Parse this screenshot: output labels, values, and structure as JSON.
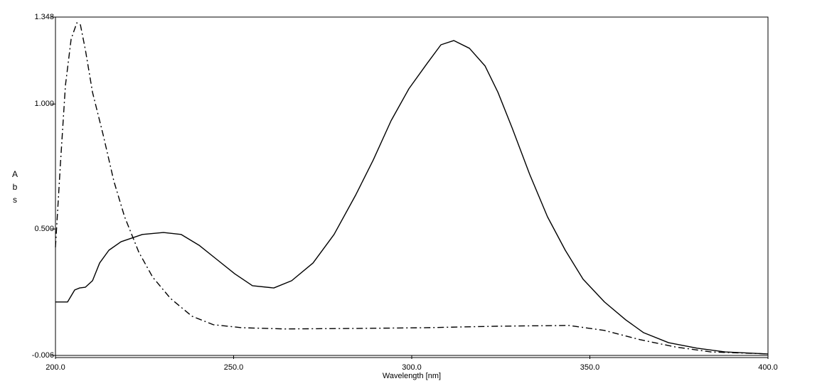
{
  "chart_data": {
    "type": "line",
    "x_label": "Wavelength [nm]",
    "y_label": "Abs",
    "xlim": [
      200,
      400
    ],
    "ylim": [
      -0.006,
      1.348
    ],
    "xticks": [
      {
        "value": 200,
        "label": "200.0"
      },
      {
        "value": 250,
        "label": "250.0"
      },
      {
        "value": 300,
        "label": "300.0"
      },
      {
        "value": 350,
        "label": "350.0"
      },
      {
        "value": 400,
        "label": "400.0"
      }
    ],
    "yticks": [
      -0.006,
      {
        "value": 0.5,
        "label": "0.500"
      },
      {
        "value": 1,
        "label": "1.000"
      },
      1.348
    ],
    "series": [
      {
        "color": "#000000",
        "dash": "solid",
        "x": [
          200,
          203.4,
          205.4,
          206.8,
          208.4,
          210.4,
          212.4,
          215,
          218.4,
          224.4,
          230.3,
          235.3,
          240.3,
          245.3,
          250.3,
          255.3,
          261.3,
          266.3,
          272.3,
          278.2,
          284.2,
          289.2,
          294.2,
          299.2,
          304.2,
          308.2,
          311.8,
          316.2,
          320.6,
          324.2,
          328.2,
          333.1,
          338.1,
          343.1,
          348.1,
          354.1,
          360.1,
          365.1,
          372.1,
          380.1,
          388,
          400
        ],
        "values": [
          0.208,
          0.208,
          0.256,
          0.264,
          0.267,
          0.293,
          0.364,
          0.415,
          0.449,
          0.478,
          0.486,
          0.478,
          0.435,
          0.378,
          0.321,
          0.273,
          0.264,
          0.293,
          0.364,
          0.478,
          0.634,
          0.776,
          0.933,
          1.061,
          1.16,
          1.237,
          1.254,
          1.223,
          1.152,
          1.047,
          0.904,
          0.719,
          0.549,
          0.415,
          0.299,
          0.208,
          0.136,
          0.085,
          0.045,
          0.023,
          0.008,
          0
        ]
      },
      {
        "color": "#000000",
        "dash": "dashdot",
        "x": [
          200,
          201.4,
          202.8,
          204.4,
          206,
          207,
          208.4,
          210.4,
          213.4,
          216.4,
          219.4,
          223.4,
          227.3,
          232.3,
          238.3,
          244.3,
          252.3,
          264.3,
          284.2,
          304.2,
          324.2,
          344.1,
          354.1,
          364.1,
          374,
          384,
          400
        ],
        "values": [
          0.427,
          0.762,
          1.075,
          1.26,
          1.325,
          1.317,
          1.217,
          1.047,
          0.876,
          0.691,
          0.549,
          0.407,
          0.307,
          0.222,
          0.151,
          0.117,
          0.105,
          0.1,
          0.102,
          0.105,
          0.111,
          0.114,
          0.094,
          0.057,
          0.028,
          0.008,
          0
        ]
      }
    ]
  }
}
